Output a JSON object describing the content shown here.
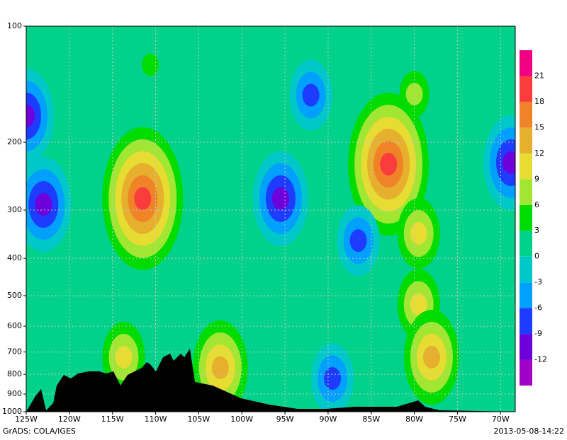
{
  "chart_data": {
    "type": "contour",
    "credit": "GrADS: COLA/IGES",
    "timestamp": "2013-05-08-14:22",
    "xlim": [
      -125,
      -68.3
    ],
    "xticks": [
      {
        "value": -125,
        "label": "125W"
      },
      {
        "value": -120,
        "label": "120W"
      },
      {
        "value": -115,
        "label": "115W"
      },
      {
        "value": -110,
        "label": "110W"
      },
      {
        "value": -105,
        "label": "105W"
      },
      {
        "value": -100,
        "label": "100W"
      },
      {
        "value": -95,
        "label": "95W"
      },
      {
        "value": -90,
        "label": "90W"
      },
      {
        "value": -85,
        "label": "85W"
      },
      {
        "value": -80,
        "label": "80W"
      },
      {
        "value": -75,
        "label": "75W"
      },
      {
        "value": -70,
        "label": "70W"
      }
    ],
    "ylim": [
      1000,
      100
    ],
    "yscale": "log",
    "yticks": [
      100,
      200,
      300,
      400,
      500,
      600,
      700,
      800,
      900,
      1000
    ],
    "grid": true,
    "levels": [
      -12,
      -9,
      -6,
      -3,
      0,
      3,
      6,
      9,
      12,
      15,
      18,
      21
    ],
    "colors": [
      "#a000c8",
      "#6e00dc",
      "#1e3cff",
      "#00a0ff",
      "#00c8c8",
      "#00d28c",
      "#00dc00",
      "#a0e632",
      "#e6dc32",
      "#e6af2d",
      "#f08228",
      "#fa3c3c",
      "#f00082"
    ],
    "lon": [
      -111.5,
      -123,
      -95.5,
      -92,
      -83,
      -79.5,
      -79.5,
      -78,
      -86.5,
      -68.8,
      -125,
      -102.5,
      -113.7,
      -89.5,
      -110.6,
      -80
    ],
    "pressure": [
      280,
      290,
      280,
      151,
      228,
      345,
      527,
      722,
      360,
      226,
      171,
      769,
      722,
      820,
      126,
      150
    ],
    "values": [
      19,
      -11,
      -11,
      -8,
      19,
      11,
      10,
      13,
      -8,
      -11,
      -10,
      14,
      10,
      -8,
      4,
      7
    ]
  }
}
